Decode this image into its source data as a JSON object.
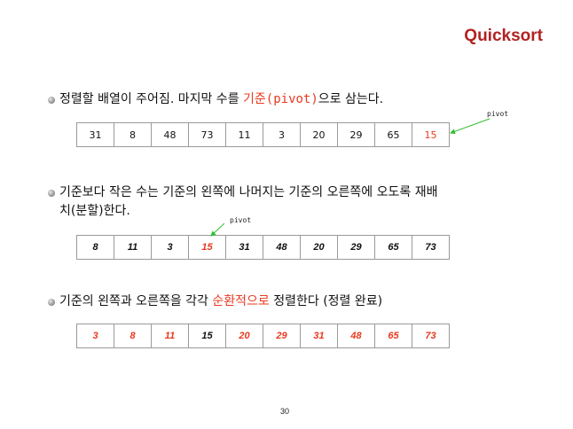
{
  "slide": {
    "title": "Quicksort",
    "page_number": "30"
  },
  "bullets": [
    {
      "pre": "정렬할 배열이 주어짐. 마지막 수를 ",
      "hl": "기준(pivot)",
      "post": "으로 삼는다."
    },
    {
      "line1": "기준보다 작은 수는 기준의 왼쪽에 나머지는 기준의 오른쪽에 오도록 재배",
      "line2": "치(분할)한다."
    },
    {
      "pre": "기준의 왼쪽과 오른쪽을 각각 ",
      "hl": "순환적으로",
      "post": " 정렬한다 (정렬 완료)"
    }
  ],
  "arrays": [
    {
      "values": [
        "31",
        "8",
        "48",
        "73",
        "11",
        "3",
        "20",
        "29",
        "65",
        "15"
      ],
      "red_indices": [
        9
      ],
      "pivot_index": 9
    },
    {
      "values": [
        "8",
        "11",
        "3",
        "15",
        "31",
        "48",
        "20",
        "29",
        "65",
        "73"
      ],
      "red_indices": [
        3
      ],
      "pivot_index": 3
    },
    {
      "values": [
        "3",
        "8",
        "11",
        "15",
        "20",
        "29",
        "31",
        "48",
        "65",
        "73"
      ],
      "red_indices": [
        0,
        1,
        2,
        4,
        5,
        6,
        7,
        8,
        9
      ],
      "pivot_index": 3
    }
  ],
  "pivot_label": "pivot",
  "colors": {
    "title": "#b22222",
    "highlight": "#e83a1f",
    "arrow": "#2fbf2f"
  }
}
